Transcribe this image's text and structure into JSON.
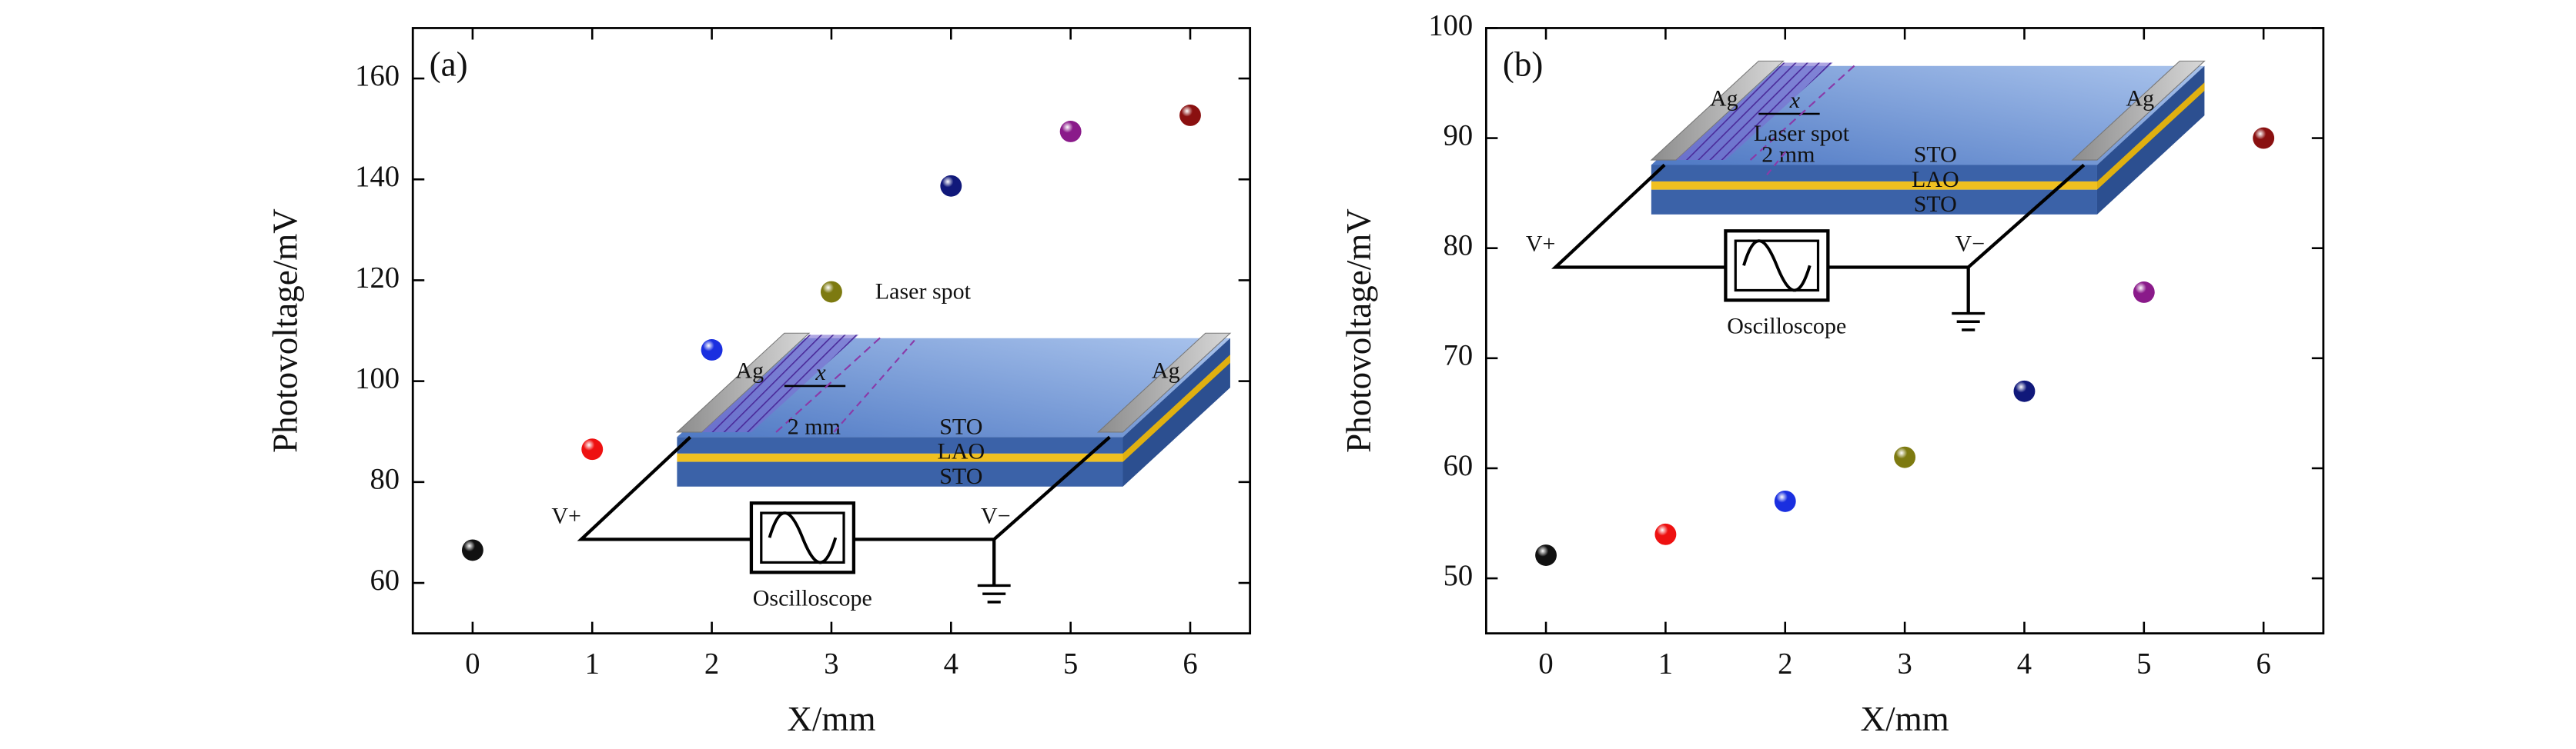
{
  "chart_data": [
    {
      "type": "scatter",
      "panel_label": "(a)",
      "xlabel": "X/mm",
      "ylabel": "Photovoltage/mV",
      "x": [
        0,
        1,
        2,
        3,
        4,
        5,
        6
      ],
      "values": [
        66.5,
        86.5,
        106.2,
        117.7,
        138.7,
        149.5,
        152.7
      ],
      "colors": [
        "#111111",
        "#ee1111",
        "#1a2fe0",
        "#7d7a10",
        "#10187a",
        "#8a1a8a",
        "#8a1010"
      ],
      "xlim": [
        -0.5,
        6.5
      ],
      "ylim": [
        50,
        170
      ],
      "xticks": [
        0,
        1,
        2,
        3,
        4,
        5,
        6
      ],
      "yticks": [
        60,
        80,
        100,
        120,
        140,
        160
      ],
      "annotations": [
        "Ag",
        "Ag",
        "Laser spot",
        "x",
        "2 mm",
        "STO",
        "LAO",
        "STO",
        "V+",
        "V−",
        "Oscilloscope"
      ]
    },
    {
      "type": "scatter",
      "panel_label": "(b)",
      "xlabel": "X/mm",
      "ylabel": "Photovoltage/mV",
      "x": [
        0,
        1,
        2,
        3,
        4,
        5,
        6
      ],
      "values": [
        52.1,
        54,
        57,
        61,
        67,
        76,
        90
      ],
      "colors": [
        "#111111",
        "#ee1111",
        "#1a2fe0",
        "#7d7a10",
        "#10187a",
        "#8a1a8a",
        "#8a1010"
      ],
      "xlim": [
        -0.5,
        6.5
      ],
      "ylim": [
        45,
        100
      ],
      "xticks": [
        0,
        1,
        2,
        3,
        4,
        5,
        6
      ],
      "yticks": [
        50,
        60,
        70,
        80,
        90,
        100
      ],
      "annotations": [
        "Ag",
        "Ag",
        "Laser spot",
        "x",
        "2 mm",
        "STO",
        "LAO",
        "STO",
        "V+",
        "V−",
        "Oscilloscope"
      ]
    }
  ]
}
